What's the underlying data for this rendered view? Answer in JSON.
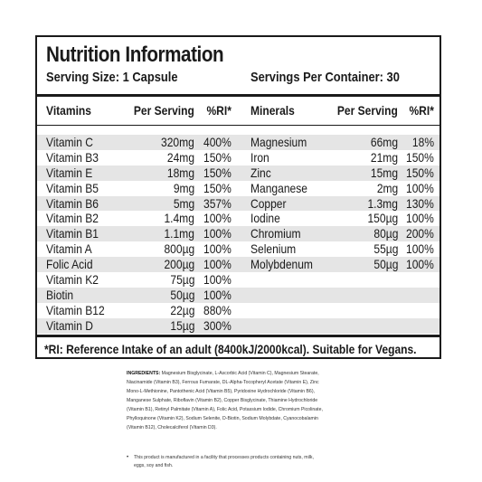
{
  "title": "Nutrition Information",
  "serving_size": "Serving Size: 1 Capsule",
  "servings_per_container": "Servings Per Container: 30",
  "headers": {
    "vitamins": "Vitamins",
    "per_serving_1": "Per Serving",
    "ri_1": "%RI*",
    "minerals": "Minerals",
    "per_serving_2": "Per Serving",
    "ri_2": "%RI*"
  },
  "rows": [
    {
      "v": "Vitamin C",
      "vps": "320mg",
      "vri": "400%",
      "m": "Magnesium",
      "mps": "66mg",
      "mri": "18%"
    },
    {
      "v": "Vitamin B3",
      "vps": "24mg",
      "vri": "150%",
      "m": "Iron",
      "mps": "21mg",
      "mri": "150%"
    },
    {
      "v": "Vitamin E",
      "vps": "18mg",
      "vri": "150%",
      "m": "Zinc",
      "mps": "15mg",
      "mri": "150%"
    },
    {
      "v": "Vitamin B5",
      "vps": "9mg",
      "vri": "150%",
      "m": "Manganese",
      "mps": "2mg",
      "mri": "100%"
    },
    {
      "v": "Vitamin B6",
      "vps": "5mg",
      "vri": "357%",
      "m": "Copper",
      "mps": "1.3mg",
      "mri": "130%"
    },
    {
      "v": "Vitamin B2",
      "vps": "1.4mg",
      "vri": "100%",
      "m": "Iodine",
      "mps": "150µg",
      "mri": "100%"
    },
    {
      "v": "Vitamin B1",
      "vps": "1.1mg",
      "vri": "100%",
      "m": "Chromium",
      "mps": "80µg",
      "mri": "200%"
    },
    {
      "v": "Vitamin A",
      "vps": "800µg",
      "vri": "100%",
      "m": "Selenium",
      "mps": "55µg",
      "mri": "100%"
    },
    {
      "v": "Folic Acid",
      "vps": "200µg",
      "vri": "100%",
      "m": "Molybdenum",
      "mps": "50µg",
      "mri": "100%"
    },
    {
      "v": "Vitamin K2",
      "vps": "75µg",
      "vri": "100%",
      "m": "",
      "mps": "",
      "mri": ""
    },
    {
      "v": "Biotin",
      "vps": "50µg",
      "vri": "100%",
      "m": "",
      "mps": "",
      "mri": ""
    },
    {
      "v": "Vitamin B12",
      "vps": "22µg",
      "vri": "880%",
      "m": "",
      "mps": "",
      "mri": ""
    },
    {
      "v": "Vitamin D",
      "vps": "15µg",
      "vri": "300%",
      "m": "",
      "mps": "",
      "mri": ""
    }
  ],
  "footer": "*RI: Reference Intake of an adult (8400kJ/2000kcal). Suitable for Vegans.",
  "ingredients_label": "INGREDIENTS:",
  "ingredients_text": "Magnesium Bisglycinate, L-Ascorbic Acid (Vitamin C), Magnesium Stearate, Niacinamide (Vitamin B3), Ferrous Fumarate, DL-Alpha-Tocopheryl Acetate (Vitamin E), Zinc Mono-L-Methionine, Pantothenic Acid (Vitamin B5), Pyridoxine Hydrochloride (Vitamin B6), Manganese Sulphate, Riboflavin (Vitamin B2), Copper Bisglycinate, Thiamine Hydrochloride (Vitamin B1), Retinyl Palmitate (Vitamin A), Folic Acid, Potassium Iodide, Chromium Picolinate, Phylloquinone (Vitamin K2), Sodium Selenite, D-Biotin, Sodium Molybdate, Cyanocobalamin (Vitamin B12), Cholecalciferol (Vitamin D3).",
  "allergen_note": "This product is manufactured in a facility that processes products containing nuts, milk, eggs, soy and fish."
}
